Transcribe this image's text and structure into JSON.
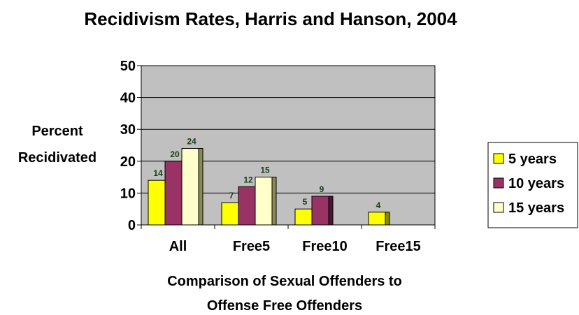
{
  "chart_data": {
    "type": "bar",
    "title": "Recidivism Rates, Harris and Hanson, 2004",
    "ylabel_lines": [
      "Percent",
      "Recidivated"
    ],
    "xlabel_lines": [
      "Comparison of Sexual Offenders to",
      "Offense Free Offenders"
    ],
    "categories": [
      "All",
      "Free5",
      "Free10",
      "Free15"
    ],
    "ylim": [
      0,
      50
    ],
    "yticks": [
      0,
      10,
      20,
      30,
      40,
      50
    ],
    "grid": true,
    "legend_position": "right",
    "series": [
      {
        "name": "5 years",
        "values": [
          14,
          7,
          5,
          4
        ],
        "color": "#ffff00",
        "shade": "#8a8a00"
      },
      {
        "name": "10 years",
        "values": [
          20,
          12,
          9,
          null
        ],
        "color": "#993366",
        "shade": "#4a1830"
      },
      {
        "name": "15 years",
        "values": [
          24,
          15,
          null,
          null
        ],
        "color": "#ffffcc",
        "shade": "#8a8a55"
      }
    ],
    "plot_background": "#c0c0c0"
  }
}
